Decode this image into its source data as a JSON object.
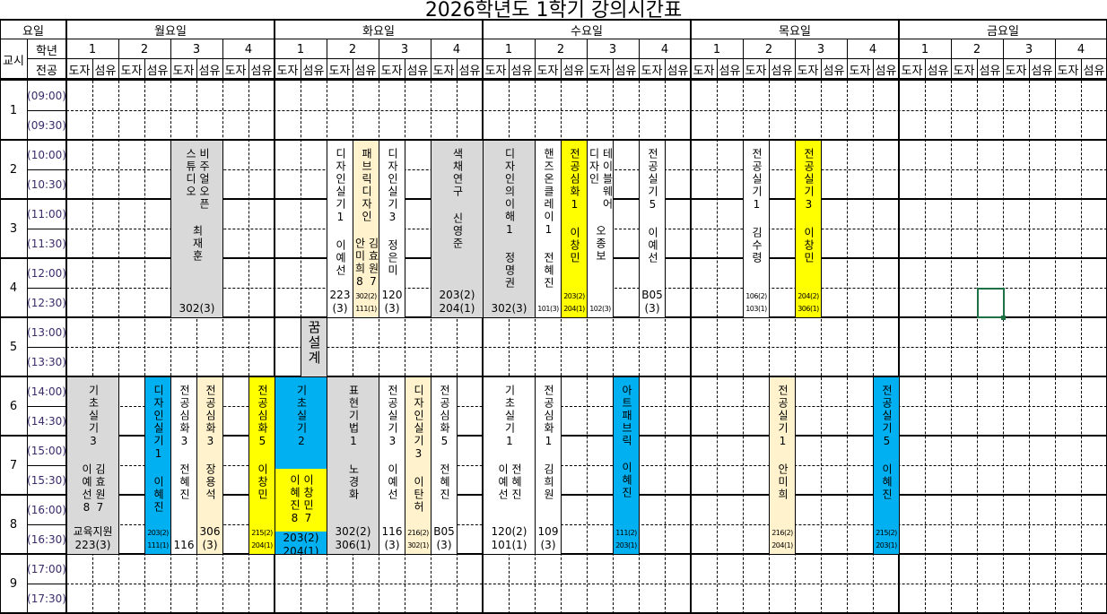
{
  "title": "2026학년도 1학기 강의시간표",
  "header": {
    "day_label": "요일",
    "period_label": "교시",
    "grade_label": "학년",
    "major_label": "전공",
    "days": [
      "월요일",
      "화요일",
      "수요일",
      "목요일",
      "금요일"
    ],
    "grades": [
      "1",
      "2",
      "3",
      "4"
    ],
    "majors": [
      "도자",
      "섬유"
    ]
  },
  "times": [
    "(09:00)",
    "(09:30)",
    "(10:00)",
    "(10:30)",
    "(11:00)",
    "(11:30)",
    "(12:00)",
    "(12:30)",
    "(13:00)",
    "(13:30)",
    "(14:00)",
    "(14:30)",
    "(15:00)",
    "(15:30)",
    "(16:00)",
    "(16:30)",
    "(17:00)",
    "(17:30)"
  ],
  "periods": [
    "1",
    "2",
    "3",
    "4",
    "5",
    "6",
    "7",
    "8",
    "9"
  ],
  "colors": {
    "gray": "#d9d9d9",
    "blue": "#00b0f0",
    "yellow": "#ffff00",
    "cream": "#fff2cc",
    "white": "#ffffff",
    "selection": "#1e7145"
  },
  "selected_cell": {
    "day": "금요일",
    "grade": "2",
    "major": "섬유",
    "time": "12:30"
  },
  "classes": [
    {
      "day": "월요일",
      "grade": "3",
      "major": "도자",
      "span": 2,
      "start": "10:00",
      "end": "13:00",
      "color": "gray",
      "title": [
        "비주얼오픈",
        "스튜디오"
      ],
      "names": [
        "최재훈"
      ],
      "rooms": [
        "302(3)"
      ],
      "small": false
    },
    {
      "day": "월요일",
      "grade": "1",
      "major": "도자",
      "span": 2,
      "start": "14:00",
      "end": "17:00",
      "color": "gray",
      "title": [
        "기초실기3"
      ],
      "names": [
        "김효원7",
        "이예선8"
      ],
      "rooms": [
        "교육지원",
        "223(3)"
      ],
      "small": false
    },
    {
      "day": "월요일",
      "grade": "2",
      "major": "섬유",
      "span": 1,
      "start": "14:00",
      "end": "17:00",
      "color": "blue",
      "title": [
        "디자인실기1"
      ],
      "names": [
        "이혜진"
      ],
      "rooms": [
        "203(2)",
        "111(1)"
      ],
      "small": true
    },
    {
      "day": "월요일",
      "grade": "3",
      "major": "도자",
      "span": 1,
      "start": "14:00",
      "end": "17:00",
      "color": "white",
      "title": [
        "전공심화3"
      ],
      "names": [
        "전혜진"
      ],
      "rooms": [
        "116"
      ],
      "small": false
    },
    {
      "day": "월요일",
      "grade": "3",
      "major": "섬유",
      "span": 1,
      "start": "14:00",
      "end": "17:00",
      "color": "cream",
      "title": [
        "전공심화3"
      ],
      "names": [
        "장용석"
      ],
      "rooms": [
        "306",
        "(3)"
      ],
      "small": false
    },
    {
      "day": "월요일",
      "grade": "4",
      "major": "섬유",
      "span": 1,
      "start": "14:00",
      "end": "17:00",
      "color": "yellow",
      "title": [
        "전공심화5"
      ],
      "names": [
        "이창민"
      ],
      "rooms": [
        "215(2)",
        "204(1)"
      ],
      "small": true
    },
    {
      "day": "화요일",
      "grade": "2",
      "major": "도자",
      "span": 1,
      "start": "10:00",
      "end": "13:00",
      "color": "white",
      "title": [
        "디자인실기1"
      ],
      "names": [
        "이예선"
      ],
      "rooms": [
        "223",
        "(3)"
      ],
      "small": false
    },
    {
      "day": "화요일",
      "grade": "2",
      "major": "섬유",
      "span": 1,
      "start": "10:00",
      "end": "13:00",
      "color": "cream",
      "title": [
        "패브릭디자인"
      ],
      "names": [
        "김효원7",
        "안미희8"
      ],
      "rooms": [
        "302(2)",
        "111(1)"
      ],
      "small": true
    },
    {
      "day": "화요일",
      "grade": "3",
      "major": "도자",
      "span": 1,
      "start": "10:00",
      "end": "13:00",
      "color": "white",
      "title": [
        "디자인실기3"
      ],
      "names": [
        "정은미"
      ],
      "rooms": [
        "120",
        "(3)"
      ],
      "small": false
    },
    {
      "day": "화요일",
      "grade": "4",
      "major": "도자",
      "span": 2,
      "start": "10:00",
      "end": "13:00",
      "color": "gray",
      "title": [
        "색채연구"
      ],
      "names": [
        "신영준"
      ],
      "rooms": [
        "203(2)",
        "204(1)"
      ],
      "small": false
    },
    {
      "day": "화요일",
      "grade": "1",
      "major": "섬유",
      "span": 1,
      "start": "13:00",
      "end": "14:00",
      "color": "gray",
      "title": [
        "꿈설계"
      ],
      "names": [],
      "rooms": [],
      "small": false
    },
    {
      "day": "화요일",
      "grade": "1",
      "major": "도자",
      "span": 2,
      "start": "14:00",
      "end": "17:00",
      "color": "blue",
      "title": [
        "기초실기2"
      ],
      "names": [
        "이창민7",
        "이혜진8"
      ],
      "names_color": "yellow",
      "rooms": [
        "203(2)",
        "204(1)"
      ],
      "small": false
    },
    {
      "day": "화요일",
      "grade": "2",
      "major": "도자",
      "span": 2,
      "start": "14:00",
      "end": "17:00",
      "color": "gray",
      "title": [
        "표현기법1"
      ],
      "names": [
        "노경화"
      ],
      "rooms": [
        "302(2)",
        "306(1)"
      ],
      "small": false
    },
    {
      "day": "화요일",
      "grade": "3",
      "major": "도자",
      "span": 1,
      "start": "14:00",
      "end": "17:00",
      "color": "white",
      "title": [
        "전공실기3"
      ],
      "names": [
        "이예선"
      ],
      "rooms": [
        "116",
        "(3)"
      ],
      "small": false
    },
    {
      "day": "화요일",
      "grade": "3",
      "major": "섬유",
      "span": 1,
      "start": "14:00",
      "end": "17:00",
      "color": "cream",
      "title": [
        "디자인실기3"
      ],
      "names": [
        "이탄허"
      ],
      "rooms": [
        "216(2)",
        "302(1)"
      ],
      "small": true
    },
    {
      "day": "화요일",
      "grade": "4",
      "major": "도자",
      "span": 1,
      "start": "14:00",
      "end": "17:00",
      "color": "white",
      "title": [
        "전공심화5"
      ],
      "names": [
        "전혜진"
      ],
      "rooms": [
        "B05",
        "(3)"
      ],
      "small": false
    },
    {
      "day": "수요일",
      "grade": "1",
      "major": "도자",
      "span": 2,
      "start": "10:00",
      "end": "13:00",
      "color": "gray",
      "title": [
        "디자인의이해1"
      ],
      "names": [
        "정명권"
      ],
      "rooms": [
        "302(3)"
      ],
      "small": false
    },
    {
      "day": "수요일",
      "grade": "2",
      "major": "도자",
      "span": 1,
      "start": "10:00",
      "end": "13:00",
      "color": "white",
      "title": [
        "핸즈온클레이1"
      ],
      "names": [
        "전혜진"
      ],
      "rooms": [
        "101(3)"
      ],
      "small": true
    },
    {
      "day": "수요일",
      "grade": "2",
      "major": "섬유",
      "span": 1,
      "start": "10:00",
      "end": "13:00",
      "color": "yellow",
      "title": [
        "전공심화1"
      ],
      "names": [
        "이창민"
      ],
      "rooms": [
        "203(2)",
        "204(1)"
      ],
      "small": true
    },
    {
      "day": "수요일",
      "grade": "3",
      "major": "도자",
      "span": 1,
      "start": "10:00",
      "end": "13:00",
      "color": "white",
      "title": [
        "테이블웨어",
        "디자인"
      ],
      "names": [
        "오종보"
      ],
      "rooms": [
        "102(3)"
      ],
      "small": true
    },
    {
      "day": "수요일",
      "grade": "4",
      "major": "도자",
      "span": 1,
      "start": "10:00",
      "end": "13:00",
      "color": "white",
      "title": [
        "전공실기5"
      ],
      "names": [
        "이예선"
      ],
      "rooms": [
        "B05",
        "(3)"
      ],
      "small": false
    },
    {
      "day": "수요일",
      "grade": "1",
      "major": "도자",
      "span": 2,
      "start": "14:00",
      "end": "17:00",
      "color": "white",
      "title": [
        "기초실기1"
      ],
      "names": [
        "전혜진",
        "이예선"
      ],
      "rooms": [
        "120(2)",
        "101(1)"
      ],
      "small": false
    },
    {
      "day": "수요일",
      "grade": "2",
      "major": "도자",
      "span": 1,
      "start": "14:00",
      "end": "17:00",
      "color": "white",
      "title": [
        "전공심화1"
      ],
      "names": [
        "김희원"
      ],
      "rooms": [
        "109",
        "(3)"
      ],
      "small": false
    },
    {
      "day": "수요일",
      "grade": "3",
      "major": "섬유",
      "span": 1,
      "start": "14:00",
      "end": "17:00",
      "color": "blue",
      "title": [
        "아트패브릭"
      ],
      "names": [
        "이혜진"
      ],
      "rooms": [
        "111(2)",
        "203(1)"
      ],
      "small": true
    },
    {
      "day": "목요일",
      "grade": "2",
      "major": "도자",
      "span": 1,
      "start": "10:00",
      "end": "13:00",
      "color": "white",
      "title": [
        "전공실기1"
      ],
      "names": [
        "김수령"
      ],
      "rooms": [
        "106(2)",
        "103(1)"
      ],
      "small": true
    },
    {
      "day": "목요일",
      "grade": "3",
      "major": "도자",
      "span": 1,
      "start": "10:00",
      "end": "13:00",
      "color": "yellow",
      "title": [
        "전공실기3"
      ],
      "names": [
        "이창민"
      ],
      "rooms": [
        "204(2)",
        "306(1)"
      ],
      "small": true
    },
    {
      "day": "목요일",
      "grade": "2",
      "major": "섬유",
      "span": 1,
      "start": "14:00",
      "end": "17:00",
      "color": "cream",
      "title": [
        "전공실기1"
      ],
      "names": [
        "안미희"
      ],
      "rooms": [
        "216(2)",
        "204(1)"
      ],
      "small": true
    },
    {
      "day": "목요일",
      "grade": "4",
      "major": "섬유",
      "span": 1,
      "start": "14:00",
      "end": "17:00",
      "color": "blue",
      "title": [
        "전공실기5"
      ],
      "names": [
        "이혜진"
      ],
      "rooms": [
        "215(2)",
        "203(1)"
      ],
      "small": true
    }
  ]
}
